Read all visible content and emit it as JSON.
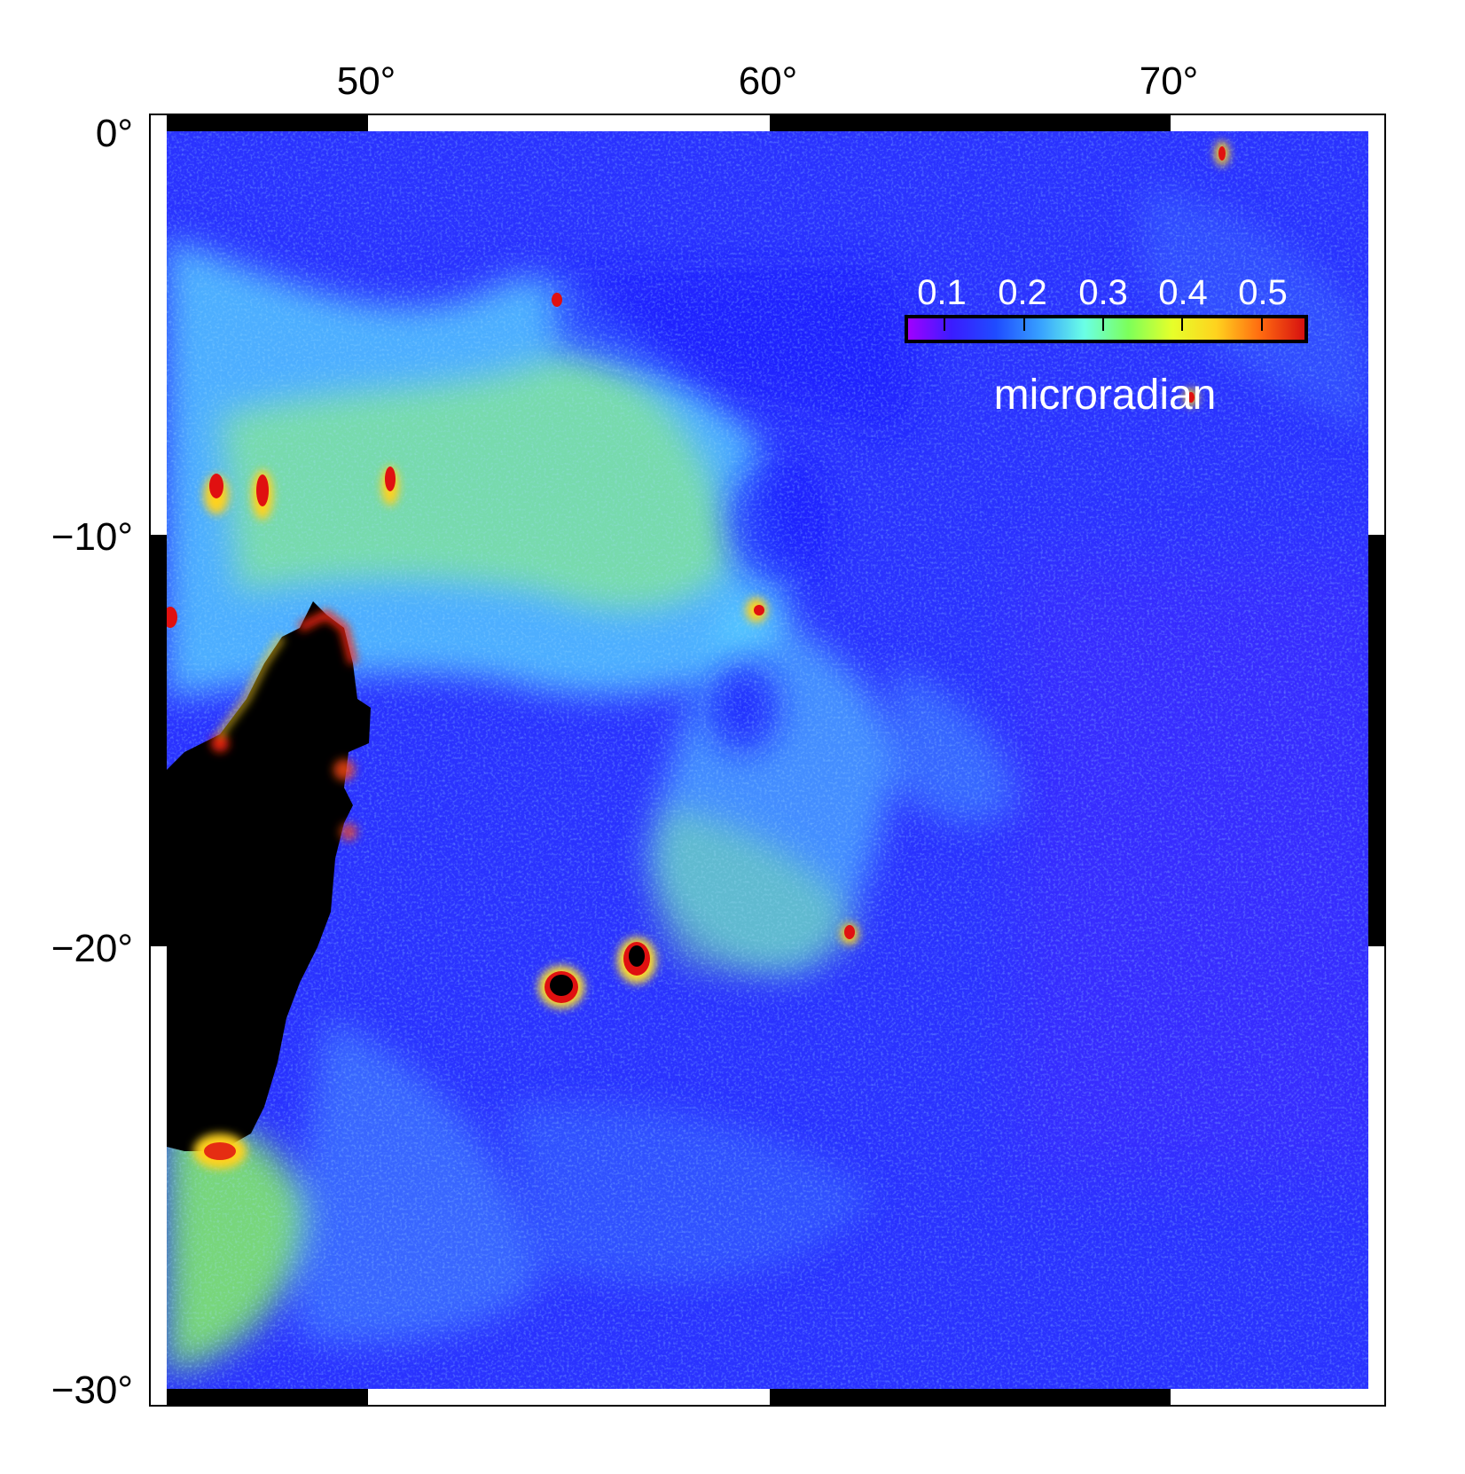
{
  "map": {
    "x_ticks": [
      {
        "lon": 50,
        "label": "50°"
      },
      {
        "lon": 60,
        "label": "60°"
      },
      {
        "lon": 70,
        "label": "70°"
      }
    ],
    "y_ticks": [
      {
        "lat": 0,
        "label": "0°"
      },
      {
        "lat": -10,
        "label": "−10°"
      },
      {
        "lat": -20,
        "label": "−20°"
      },
      {
        "lat": -30,
        "label": "−30°"
      }
    ],
    "lon_range": [
      45,
      75
    ],
    "lat_range": [
      -30,
      0
    ],
    "land_color": "#000000",
    "background_color": "#2a32ff"
  },
  "colorbar": {
    "tick_labels": [
      "0.1",
      "0.2",
      "0.3",
      "0.4",
      "0.5"
    ],
    "units": "microradian",
    "range": [
      0.067,
      0.567
    ],
    "colors": [
      "#a000ff",
      "#3a1cff",
      "#1f4cff",
      "#37a0ff",
      "#6affe6",
      "#7cff5a",
      "#e6ff2a",
      "#ffd21e",
      "#ff6a10",
      "#d61010"
    ]
  }
}
